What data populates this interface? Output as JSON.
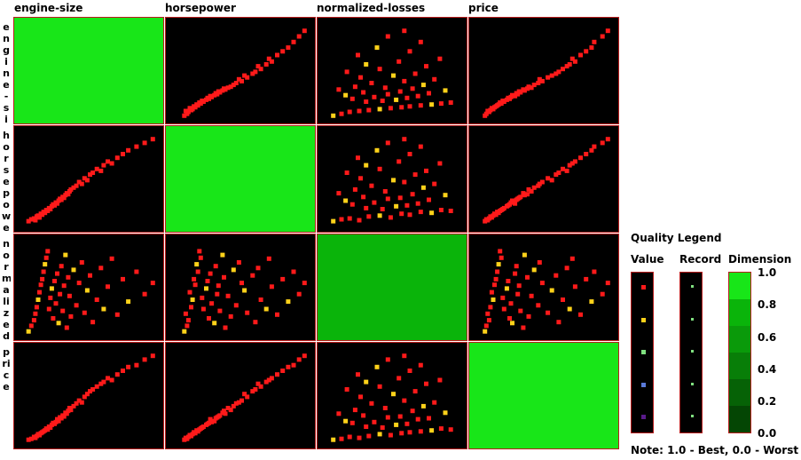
{
  "columns": [
    "engine-size",
    "horsepower",
    "normalized-losses",
    "price"
  ],
  "row_labels": [
    "engine-siz",
    "horsepower",
    "normalized",
    "price"
  ],
  "colors": {
    "cell_border": "#b81d1d",
    "cell_bg": "#000000",
    "point_best": "#ff1a1a",
    "point_good": "#ffd21a",
    "point_mid": "#80e080",
    "point_low": "#5a7ad8",
    "point_worst": "#5a1a8a",
    "quality_1": "#18e618",
    "quality_0_8": "#0ab40a"
  },
  "legend": {
    "title": "Quality Legend",
    "value_label": "Value",
    "record_label": "Record",
    "dimension_label": "Dimension",
    "ticks": [
      "1.0",
      "0.8",
      "0.6",
      "0.4",
      "0.2",
      "0.0"
    ],
    "note": "Note: 1.0 - Best,  0.0 - Worst",
    "value_colors": [
      "#ff1a1a",
      "#ffd21a",
      "#80e080",
      "#5a7ad8",
      "#5a1a8a"
    ],
    "record_colors": [
      "#80e080",
      "#80e080",
      "#80e080",
      "#80e080",
      "#80e080"
    ],
    "dimension_colors": [
      "#18e618",
      "#0ab40a",
      "#0a9a0a",
      "#087e08",
      "#066206",
      "#044604"
    ]
  },
  "chart_data": {
    "type": "scatter",
    "kind": "scatterplot matrix",
    "dimensions": [
      "engine-size",
      "horsepower",
      "normalized-losses",
      "price"
    ],
    "diagonal_quality": [
      1.0,
      1.0,
      0.8,
      1.0
    ],
    "points": [
      [
        0.05,
        0.08,
        0.06,
        0.06
      ],
      [
        0.07,
        0.1,
        0.12,
        0.07
      ],
      [
        0.09,
        0.11,
        0.18,
        0.09
      ],
      [
        0.1,
        0.09,
        0.25,
        0.08
      ],
      [
        0.11,
        0.13,
        0.32,
        0.1
      ],
      [
        0.12,
        0.14,
        0.4,
        0.12
      ],
      [
        0.13,
        0.12,
        0.48,
        0.11
      ],
      [
        0.14,
        0.16,
        0.56,
        0.13
      ],
      [
        0.15,
        0.15,
        0.62,
        0.14
      ],
      [
        0.16,
        0.18,
        0.7,
        0.15
      ],
      [
        0.17,
        0.17,
        0.78,
        0.16
      ],
      [
        0.18,
        0.2,
        0.85,
        0.18
      ],
      [
        0.19,
        0.19,
        0.92,
        0.17
      ],
      [
        0.2,
        0.22,
        0.3,
        0.2
      ],
      [
        0.21,
        0.21,
        0.42,
        0.19
      ],
      [
        0.22,
        0.24,
        0.52,
        0.22
      ],
      [
        0.23,
        0.26,
        0.2,
        0.24
      ],
      [
        0.24,
        0.25,
        0.6,
        0.23
      ],
      [
        0.25,
        0.28,
        0.36,
        0.25
      ],
      [
        0.26,
        0.27,
        0.68,
        0.28
      ],
      [
        0.27,
        0.3,
        0.15,
        0.26
      ],
      [
        0.28,
        0.32,
        0.46,
        0.3
      ],
      [
        0.29,
        0.31,
        0.76,
        0.29
      ],
      [
        0.3,
        0.34,
        0.28,
        0.32
      ],
      [
        0.31,
        0.33,
        0.55,
        0.31
      ],
      [
        0.32,
        0.36,
        0.88,
        0.35
      ],
      [
        0.33,
        0.38,
        0.1,
        0.34
      ],
      [
        0.34,
        0.37,
        0.64,
        0.37
      ],
      [
        0.35,
        0.4,
        0.44,
        0.4
      ],
      [
        0.36,
        0.42,
        0.22,
        0.38
      ],
      [
        0.38,
        0.44,
        0.72,
        0.42
      ],
      [
        0.4,
        0.46,
        0.34,
        0.45
      ],
      [
        0.42,
        0.5,
        0.58,
        0.48
      ],
      [
        0.44,
        0.48,
        0.8,
        0.46
      ],
      [
        0.46,
        0.54,
        0.26,
        0.52
      ],
      [
        0.48,
        0.52,
        0.5,
        0.55
      ],
      [
        0.5,
        0.58,
        0.66,
        0.58
      ],
      [
        0.52,
        0.6,
        0.16,
        0.6
      ],
      [
        0.55,
        0.64,
        0.4,
        0.63
      ],
      [
        0.58,
        0.62,
        0.74,
        0.66
      ],
      [
        0.6,
        0.68,
        0.3,
        0.68
      ],
      [
        0.63,
        0.72,
        0.54,
        0.72
      ],
      [
        0.66,
        0.7,
        0.84,
        0.7
      ],
      [
        0.7,
        0.76,
        0.24,
        0.76
      ],
      [
        0.74,
        0.8,
        0.62,
        0.8
      ],
      [
        0.78,
        0.84,
        0.38,
        0.84
      ],
      [
        0.84,
        0.88,
        0.7,
        0.86
      ],
      [
        0.9,
        0.92,
        0.46,
        0.92
      ],
      [
        0.96,
        0.96,
        0.58,
        0.96
      ]
    ]
  }
}
